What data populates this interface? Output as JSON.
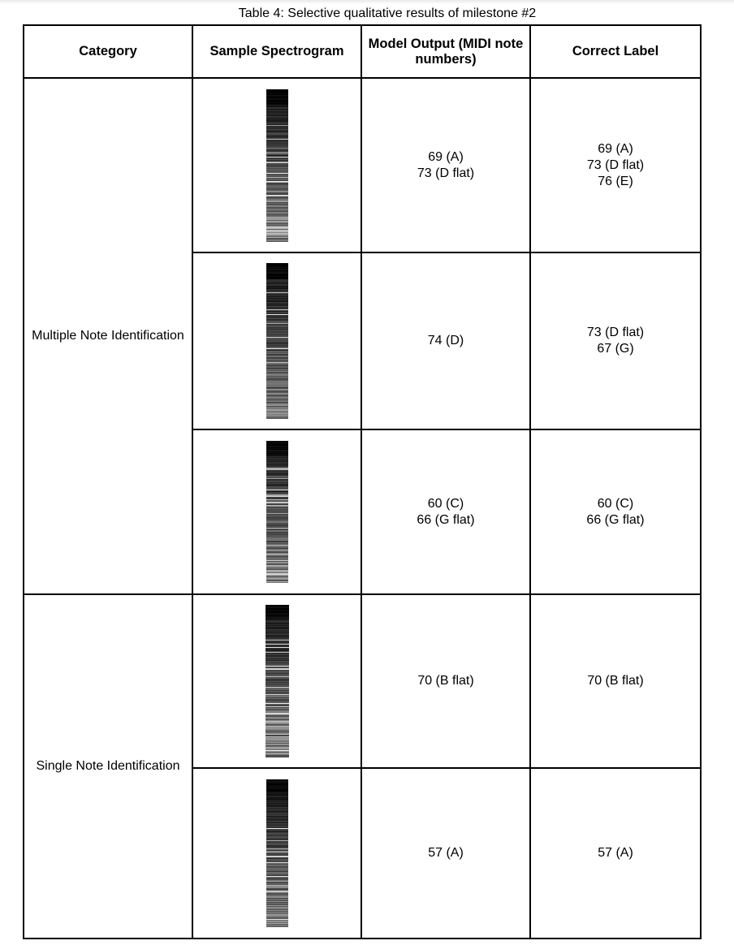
{
  "caption": "Table 4: Selective qualitative results of milestone #2",
  "headers": [
    "Category",
    "Sample Spectrogram",
    "Model Output (MIDI note numbers)",
    "Correct Label"
  ],
  "categories": [
    "Multiple Note Identification",
    "Single Note Identification"
  ],
  "rows": [
    {
      "category": 0,
      "output": [
        "69 (A)",
        "73 (D flat)"
      ],
      "label": [
        "69 (A)",
        "73 (D flat)",
        "76 (E)"
      ]
    },
    {
      "category": 0,
      "output": [
        "74 (D)"
      ],
      "label": [
        "73 (D flat)",
        "67 (G)"
      ]
    },
    {
      "category": 0,
      "output": [
        "60 (C)",
        "66 (G flat)"
      ],
      "label": [
        "60 (C)",
        "66 (G flat)"
      ]
    },
    {
      "category": 1,
      "output": [
        "70 (B flat)"
      ],
      "label": [
        "70 (B flat)"
      ]
    },
    {
      "category": 1,
      "output": [
        "57 (A)"
      ],
      "label": [
        "57 (A)"
      ]
    }
  ]
}
